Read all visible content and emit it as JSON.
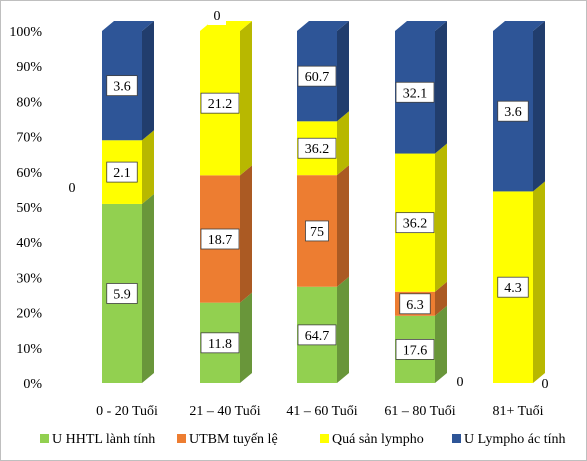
{
  "chart_data": {
    "type": "bar",
    "stacked": "percent",
    "three_d": true,
    "categories": [
      "0 - 20 Tuổi",
      "21 – 40 Tuổi",
      "41 – 60 Tuổi",
      "61 – 80 Tuổi",
      "81+ Tuổi"
    ],
    "series": [
      {
        "name": "U HHTL lành tính",
        "color": "#92d050",
        "values": [
          5.9,
          11.8,
          64.7,
          17.6,
          0
        ],
        "labels": [
          "5.9",
          "11.8",
          "64.7",
          "17.6",
          "0"
        ]
      },
      {
        "name": "UTBM  tuyến lệ",
        "color": "#ed7d31",
        "values": [
          0,
          18.7,
          75,
          6.3,
          0
        ],
        "labels": [
          "0",
          "18.7",
          "75",
          "6.3",
          "0"
        ]
      },
      {
        "name": "Quá sản lympho",
        "color": "#ffff00",
        "values": [
          2.1,
          21.2,
          36.2,
          36.2,
          4.3
        ],
        "labels": [
          "2.1",
          "21.2",
          "36.2",
          "36.2",
          "4.3"
        ]
      },
      {
        "name": "U Lympho ác tính",
        "color": "#2e5597",
        "values": [
          3.6,
          0,
          60.7,
          32.1,
          3.6
        ],
        "labels": [
          "3.6",
          "0",
          "60.7",
          "32.1",
          "3.6"
        ]
      }
    ],
    "y_ticks": [
      "0%",
      "10%",
      "20%",
      "30%",
      "40%",
      "50%",
      "60%",
      "70%",
      "80%",
      "90%",
      "100%"
    ],
    "ylim": [
      0,
      100
    ],
    "grid": false,
    "legend_position": "bottom"
  }
}
